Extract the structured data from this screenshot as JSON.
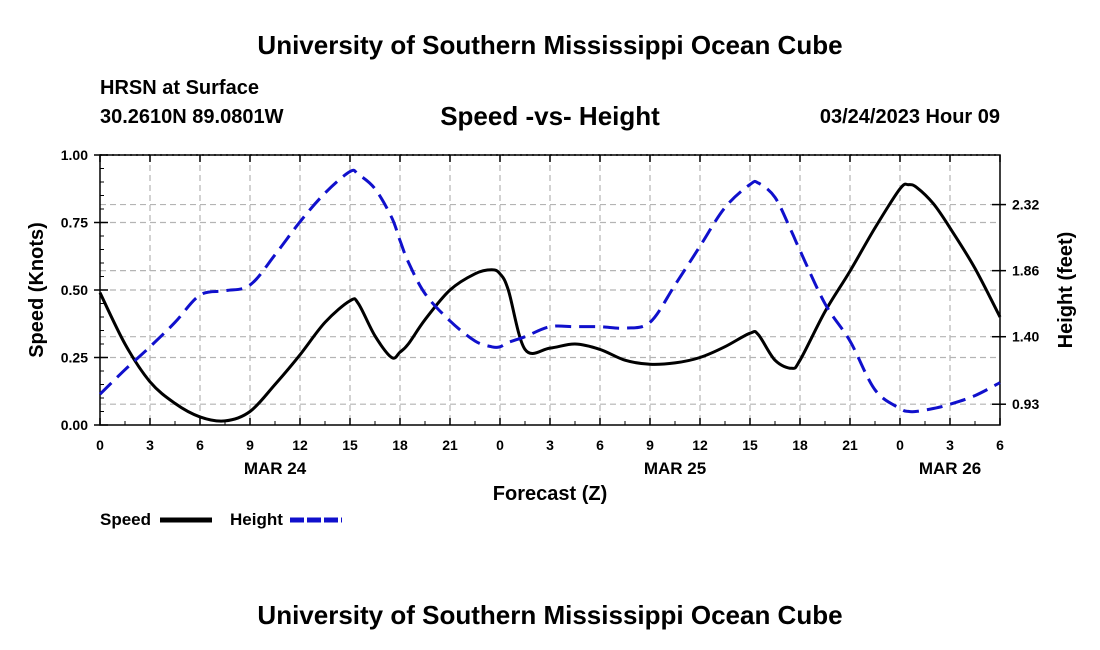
{
  "header": {
    "title": "University of Southern Mississippi Ocean Cube",
    "station": "HRSN at Surface",
    "coordinates": "30.2610N  89.0801W",
    "chart_title": "Speed -vs- Height",
    "timestamp": "03/24/2023 Hour 09"
  },
  "footer": {
    "title": "University of Southern Mississippi Ocean Cube"
  },
  "colors": {
    "speed": "#000000",
    "height": "#1010cc",
    "grid": "#b4b4b4"
  },
  "chart_data": {
    "type": "line",
    "title": "Speed -vs- Height",
    "xlabel": "Forecast (Z)",
    "ylabel_left": "Speed (Knots)",
    "ylabel_right": "Height (feet)",
    "grid": true,
    "x_range": [
      0,
      54
    ],
    "x": [
      0,
      1.5,
      3,
      4.5,
      6,
      7.5,
      9,
      10.5,
      12,
      13.5,
      15,
      15.5,
      16.5,
      17.5,
      18,
      18.5,
      19.5,
      21,
      22.5,
      23.5,
      24,
      24.5,
      25.5,
      27,
      28.5,
      30,
      31.5,
      33,
      34.5,
      36,
      37.5,
      39,
      39.5,
      40.5,
      41.5,
      42,
      43.5,
      45,
      46.5,
      48,
      48.5,
      49,
      50,
      51,
      52.5,
      54
    ],
    "x_ticks": [
      0,
      3,
      6,
      9,
      12,
      15,
      18,
      21,
      24,
      27,
      30,
      33,
      36,
      39,
      42,
      45,
      48,
      51,
      54
    ],
    "x_tick_labels": [
      "0",
      "3",
      "6",
      "9",
      "12",
      "15",
      "18",
      "21",
      "0",
      "3",
      "6",
      "9",
      "12",
      "15",
      "18",
      "21",
      "0",
      "3",
      "6"
    ],
    "date_labels": [
      {
        "label": "MAR 24",
        "at": 10.5
      },
      {
        "label": "MAR 25",
        "at": 34.5
      },
      {
        "label": "MAR 26",
        "at": 51
      }
    ],
    "left_axis": {
      "range": [
        0,
        1.0
      ],
      "ticks": [
        0,
        0.25,
        0.5,
        0.75,
        1.0
      ],
      "tick_labels": [
        "0.00",
        "0.25",
        "0.50",
        "0.75",
        "1.00"
      ]
    },
    "right_axis": {
      "ticks": [
        0.93,
        1.4,
        1.86,
        2.32
      ],
      "tick_labels": [
        "0.93",
        "1.40",
        "1.86",
        "2.32"
      ],
      "display_left_value_at_first_tick": 0.077,
      "left_units_per_tick": 0.25
    },
    "series": [
      {
        "name": "Speed",
        "axis": "left",
        "style": "solid",
        "values": [
          0.49,
          0.3,
          0.16,
          0.08,
          0.03,
          0.015,
          0.05,
          0.15,
          0.26,
          0.38,
          0.46,
          0.45,
          0.33,
          0.25,
          0.27,
          0.3,
          0.39,
          0.5,
          0.56,
          0.575,
          0.56,
          0.5,
          0.28,
          0.285,
          0.3,
          0.28,
          0.24,
          0.225,
          0.23,
          0.25,
          0.29,
          0.34,
          0.335,
          0.24,
          0.21,
          0.24,
          0.42,
          0.57,
          0.73,
          0.875,
          0.89,
          0.88,
          0.82,
          0.73,
          0.58,
          0.4
        ]
      },
      {
        "name": "Height",
        "axis": "right",
        "style": "dashed",
        "values": [
          1.0,
          1.17,
          1.33,
          1.5,
          1.69,
          1.72,
          1.76,
          1.97,
          2.2,
          2.4,
          2.55,
          2.53,
          2.43,
          2.23,
          2.07,
          1.92,
          1.7,
          1.51,
          1.37,
          1.33,
          1.33,
          1.36,
          1.4,
          1.47,
          1.47,
          1.47,
          1.46,
          1.5,
          1.76,
          2.03,
          2.3,
          2.46,
          2.47,
          2.37,
          2.13,
          2.0,
          1.63,
          1.37,
          1.03,
          0.9,
          0.88,
          0.88,
          0.9,
          0.93,
          0.99,
          1.08
        ]
      }
    ],
    "legend": [
      {
        "label": "Speed",
        "style": "solid"
      },
      {
        "label": "Height",
        "style": "dashed"
      }
    ],
    "legend_position": "bottom-left"
  }
}
